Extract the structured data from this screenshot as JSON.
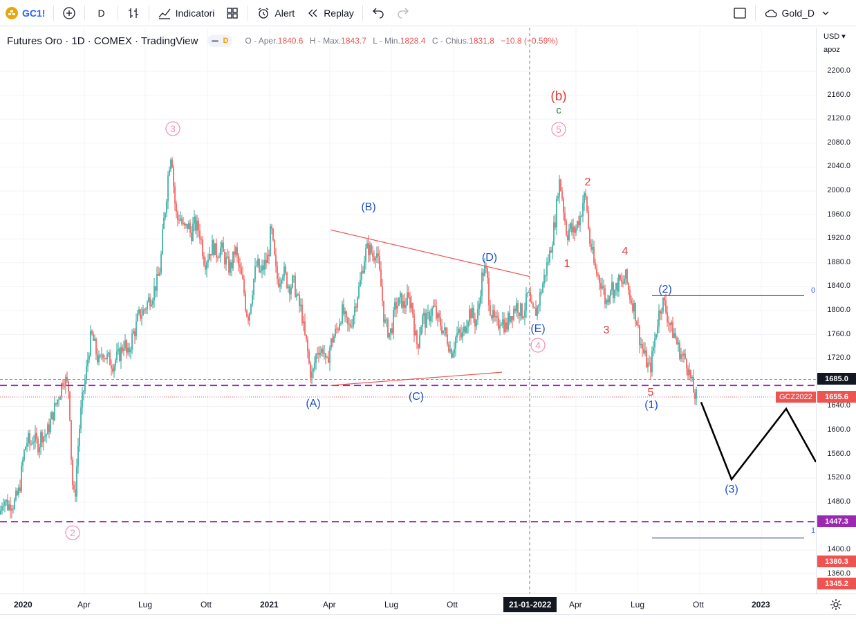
{
  "toolbar": {
    "symbol": "GC1!",
    "interval": "D",
    "indicators_label": "Indicatori",
    "alert_label": "Alert",
    "replay_label": "Replay",
    "layout_name": "Gold_D"
  },
  "legend": {
    "title": "Futures Oro · 1D · COMEX · TradingView",
    "badge": "D",
    "open_label": "O - Aper.",
    "open_value": "1840.6",
    "high_label": "H - Max.",
    "high_value": "1843.7",
    "low_label": "L - Min.",
    "low_value": "1828.4",
    "close_label": "C - Chius.",
    "close_value": "1831.8",
    "change": "−10.8 (−0.59%)"
  },
  "price_axis": {
    "currency": "USD",
    "scale_mode": "apoz",
    "ticks": [
      "2200.0",
      "2160.0",
      "2120.0",
      "2080.0",
      "2040.0",
      "2000.0",
      "1960.0",
      "1920.0",
      "1880.0",
      "1840.0",
      "1800.0",
      "1760.0",
      "1720.0",
      "1640.0",
      "1600.0",
      "1560.0",
      "1520.0",
      "1480.0",
      "1400.0",
      "1360.0"
    ],
    "boxes": [
      {
        "label": "1685.0",
        "color": "#131722"
      },
      {
        "label": "1655.6",
        "color": "#ef5350"
      },
      {
        "label": "1447.3",
        "color": "#9c27b0"
      },
      {
        "label": "1380.3",
        "color": "#ef5350"
      },
      {
        "label": "1345.2",
        "color": "#ef5350"
      }
    ],
    "symbol_tag": "GCZ2022"
  },
  "time_axis": {
    "ticks": [
      {
        "label": "2020",
        "bold": true
      },
      {
        "label": "Apr",
        "bold": false
      },
      {
        "label": "Lug",
        "bold": false
      },
      {
        "label": "Ott",
        "bold": false
      },
      {
        "label": "2021",
        "bold": true
      },
      {
        "label": "Apr",
        "bold": false
      },
      {
        "label": "Lug",
        "bold": false
      },
      {
        "label": "Ott",
        "bold": false
      },
      {
        "label": "Apr",
        "bold": false
      },
      {
        "label": "Lug",
        "bold": false
      },
      {
        "label": "Ott",
        "bold": false
      },
      {
        "label": "2023",
        "bold": true
      }
    ],
    "cursor_label": "21-01-2022"
  },
  "wave_labels": {
    "b_major": "(b)",
    "c_minor": "c",
    "circle_3": "3",
    "circle_5": "5",
    "circle_4": "4",
    "circle_2": "2",
    "A": "(A)",
    "B": "(B)",
    "C": "(C)",
    "D": "(D)",
    "E": "(E)",
    "w1": "1",
    "w2": "2",
    "w3": "3",
    "w4": "4",
    "w5": "5",
    "p1": "(1)",
    "p2": "(2)",
    "p3": "(3)",
    "fib_top": "0",
    "fib_bottom": "1"
  },
  "colors": {
    "up": "#26a69a",
    "down": "#ef5350",
    "wave_red": "#e53935",
    "wave_blue": "#1e4fc7",
    "circle_pink": "#f48fb1",
    "purple": "#9c27b0",
    "green_c": "#2e7d32"
  },
  "chart_data": {
    "type": "candlestick",
    "symbol": "GC1!",
    "interval": "1D",
    "ylim": [
      1340,
      2220
    ],
    "path": [
      [
        0,
        1460
      ],
      [
        4,
        1487
      ],
      [
        8,
        1482
      ],
      [
        12,
        1472
      ],
      [
        16,
        1481
      ],
      [
        20,
        1476
      ],
      [
        24,
        1488
      ],
      [
        28,
        1500
      ],
      [
        32,
        1540
      ],
      [
        36,
        1570
      ],
      [
        40,
        1585
      ],
      [
        44,
        1575
      ],
      [
        48,
        1590
      ],
      [
        52,
        1580
      ],
      [
        56,
        1575
      ],
      [
        60,
        1595
      ],
      [
        64,
        1590
      ],
      [
        68,
        1595
      ],
      [
        72,
        1610
      ],
      [
        76,
        1625
      ],
      [
        80,
        1640
      ],
      [
        84,
        1655
      ],
      [
        88,
        1670
      ],
      [
        92,
        1690
      ],
      [
        96,
        1680
      ],
      [
        100,
        1665
      ],
      [
        104,
        1520
      ],
      [
        108,
        1480
      ],
      [
        112,
        1560
      ],
      [
        116,
        1620
      ],
      [
        120,
        1660
      ],
      [
        124,
        1690
      ],
      [
        128,
        1730
      ],
      [
        132,
        1760
      ],
      [
        136,
        1745
      ],
      [
        140,
        1725
      ],
      [
        144,
        1710
      ],
      [
        148,
        1735
      ],
      [
        152,
        1725
      ],
      [
        156,
        1720
      ],
      [
        160,
        1715
      ],
      [
        164,
        1710
      ],
      [
        168,
        1720
      ],
      [
        172,
        1725
      ],
      [
        176,
        1735
      ],
      [
        180,
        1750
      ],
      [
        184,
        1720
      ],
      [
        188,
        1740
      ],
      [
        192,
        1760
      ],
      [
        196,
        1770
      ],
      [
        200,
        1790
      ],
      [
        204,
        1795
      ],
      [
        208,
        1800
      ],
      [
        212,
        1810
      ],
      [
        216,
        1820
      ],
      [
        220,
        1825
      ],
      [
        224,
        1840
      ],
      [
        228,
        1850
      ],
      [
        232,
        1875
      ],
      [
        236,
        1940
      ],
      [
        240,
        1980
      ],
      [
        244,
        2040
      ],
      [
        248,
        2070
      ],
      [
        252,
        1990
      ],
      [
        256,
        1950
      ],
      [
        260,
        1960
      ],
      [
        264,
        1940
      ],
      [
        268,
        1935
      ],
      [
        272,
        1945
      ],
      [
        276,
        1925
      ],
      [
        280,
        1945
      ],
      [
        284,
        1940
      ],
      [
        288,
        1935
      ],
      [
        292,
        1910
      ],
      [
        296,
        1880
      ],
      [
        300,
        1890
      ],
      [
        304,
        1900
      ],
      [
        308,
        1910
      ],
      [
        312,
        1895
      ],
      [
        316,
        1900
      ],
      [
        320,
        1905
      ],
      [
        324,
        1890
      ],
      [
        328,
        1880
      ],
      [
        332,
        1870
      ],
      [
        336,
        1880
      ],
      [
        340,
        1905
      ],
      [
        344,
        1880
      ],
      [
        348,
        1860
      ],
      [
        352,
        1840
      ],
      [
        356,
        1800
      ],
      [
        360,
        1790
      ],
      [
        364,
        1830
      ],
      [
        368,
        1860
      ],
      [
        372,
        1880
      ],
      [
        376,
        1860
      ],
      [
        380,
        1870
      ],
      [
        384,
        1880
      ],
      [
        388,
        1890
      ],
      [
        392,
        1940
      ],
      [
        396,
        1895
      ],
      [
        400,
        1855
      ],
      [
        404,
        1850
      ],
      [
        408,
        1870
      ],
      [
        412,
        1860
      ],
      [
        416,
        1845
      ],
      [
        420,
        1840
      ],
      [
        424,
        1850
      ],
      [
        428,
        1830
      ],
      [
        432,
        1810
      ],
      [
        436,
        1800
      ],
      [
        440,
        1760
      ],
      [
        444,
        1740
      ],
      [
        448,
        1700
      ],
      [
        452,
        1690
      ],
      [
        456,
        1720
      ],
      [
        460,
        1740
      ],
      [
        464,
        1730
      ],
      [
        468,
        1740
      ],
      [
        472,
        1700
      ],
      [
        476,
        1735
      ],
      [
        480,
        1750
      ],
      [
        484,
        1760
      ],
      [
        488,
        1770
      ],
      [
        492,
        1790
      ],
      [
        496,
        1800
      ],
      [
        500,
        1780
      ],
      [
        504,
        1770
      ],
      [
        508,
        1780
      ],
      [
        512,
        1800
      ],
      [
        516,
        1825
      ],
      [
        520,
        1840
      ],
      [
        524,
        1870
      ],
      [
        528,
        1895
      ],
      [
        532,
        1905
      ],
      [
        536,
        1900
      ],
      [
        540,
        1890
      ],
      [
        544,
        1905
      ],
      [
        548,
        1870
      ],
      [
        552,
        1830
      ],
      [
        556,
        1780
      ],
      [
        560,
        1770
      ],
      [
        564,
        1760
      ],
      [
        568,
        1780
      ],
      [
        572,
        1810
      ],
      [
        576,
        1810
      ],
      [
        580,
        1820
      ],
      [
        584,
        1805
      ],
      [
        588,
        1820
      ],
      [
        592,
        1815
      ],
      [
        596,
        1810
      ],
      [
        600,
        1760
      ],
      [
        604,
        1740
      ],
      [
        608,
        1775
      ],
      [
        612,
        1790
      ],
      [
        616,
        1780
      ],
      [
        620,
        1790
      ],
      [
        624,
        1800
      ],
      [
        628,
        1805
      ],
      [
        632,
        1785
      ],
      [
        636,
        1780
      ],
      [
        640,
        1770
      ],
      [
        644,
        1760
      ],
      [
        648,
        1750
      ],
      [
        652,
        1730
      ],
      [
        656,
        1740
      ],
      [
        660,
        1760
      ],
      [
        664,
        1760
      ],
      [
        668,
        1755
      ],
      [
        672,
        1770
      ],
      [
        676,
        1790
      ],
      [
        680,
        1800
      ],
      [
        684,
        1790
      ],
      [
        688,
        1780
      ],
      [
        692,
        1800
      ],
      [
        696,
        1850
      ],
      [
        700,
        1870
      ],
      [
        704,
        1860
      ],
      [
        708,
        1810
      ],
      [
        712,
        1790
      ],
      [
        716,
        1780
      ],
      [
        720,
        1775
      ],
      [
        724,
        1790
      ],
      [
        728,
        1780
      ],
      [
        732,
        1770
      ],
      [
        736,
        1790
      ],
      [
        740,
        1795
      ],
      [
        744,
        1805
      ],
      [
        748,
        1810
      ],
      [
        752,
        1800
      ],
      [
        756,
        1795
      ],
      [
        760,
        1810
      ],
      [
        764,
        1830
      ],
      [
        768,
        1800
      ],
      [
        772,
        1795
      ],
      [
        776,
        1800
      ],
      [
        780,
        1820
      ],
      [
        784,
        1840
      ],
      [
        788,
        1860
      ],
      [
        792,
        1880
      ],
      [
        796,
        1900
      ],
      [
        800,
        1930
      ],
      [
        804,
        1960
      ],
      [
        808,
        2020
      ],
      [
        812,
        2000
      ],
      [
        816,
        1960
      ],
      [
        820,
        1925
      ],
      [
        824,
        1940
      ],
      [
        828,
        1930
      ],
      [
        832,
        1935
      ],
      [
        836,
        1950
      ],
      [
        840,
        1960
      ],
      [
        844,
        1990
      ],
      [
        848,
        1985
      ],
      [
        852,
        1920
      ],
      [
        856,
        1900
      ],
      [
        860,
        1870
      ],
      [
        864,
        1860
      ],
      [
        868,
        1850
      ],
      [
        872,
        1840
      ],
      [
        876,
        1810
      ],
      [
        880,
        1830
      ],
      [
        884,
        1845
      ],
      [
        888,
        1830
      ],
      [
        892,
        1840
      ],
      [
        896,
        1850
      ],
      [
        900,
        1840
      ],
      [
        904,
        1860
      ],
      [
        908,
        1840
      ],
      [
        912,
        1820
      ],
      [
        916,
        1810
      ],
      [
        920,
        1790
      ],
      [
        924,
        1760
      ],
      [
        928,
        1740
      ],
      [
        932,
        1725
      ],
      [
        936,
        1710
      ],
      [
        940,
        1700
      ],
      [
        944,
        1730
      ],
      [
        948,
        1760
      ],
      [
        952,
        1790
      ],
      [
        956,
        1810
      ],
      [
        960,
        1815
      ],
      [
        964,
        1795
      ],
      [
        968,
        1780
      ],
      [
        972,
        1765
      ],
      [
        976,
        1760
      ],
      [
        980,
        1740
      ],
      [
        984,
        1730
      ],
      [
        988,
        1720
      ],
      [
        992,
        1720
      ],
      [
        996,
        1700
      ],
      [
        1000,
        1680
      ],
      [
        1004,
        1660
      ],
      [
        1008,
        1655
      ]
    ],
    "annotations": {
      "triangle_upper": [
        [
          478,
          1935
        ],
        [
          766,
          1857
        ]
      ],
      "triangle_lower": [
        [
          478,
          1675
        ],
        [
          726,
          1697
        ]
      ],
      "support_upper": 1675,
      "support_lower": 1447.3,
      "dotted_close": 1655.6,
      "fib_levels": [
        1825,
        1420
      ],
      "projection": [
        [
          1014,
          1647
        ],
        [
          1058,
          1518
        ],
        [
          1137,
          1636
        ],
        [
          1180,
          1547
        ]
      ]
    }
  }
}
